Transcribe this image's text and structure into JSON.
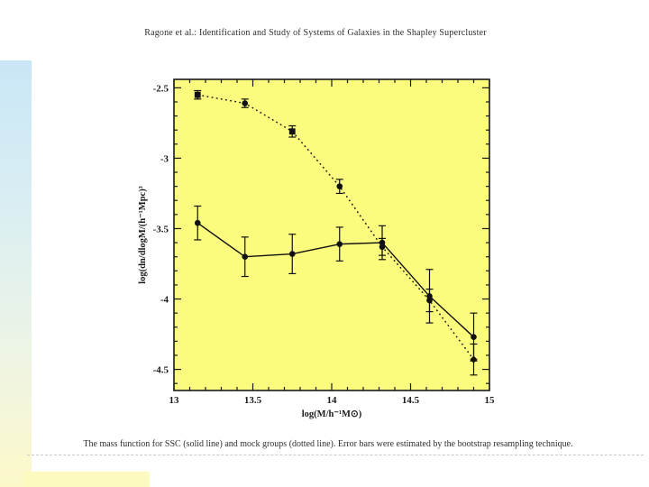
{
  "slide": {
    "title": "Ragone et al.: Identification and Study of Systems of Galaxies in the Shapley Supercluster",
    "caption": "The mass function for SSC (solid line) and mock groups (dotted line). Error bars were estimated by the bootstrap resampling technique."
  },
  "colors": {
    "accent_top": "#c9e6f6",
    "accent_bottom": "#fbf9c8",
    "bottom_strip": "#fcfabf",
    "plot_background": "#fbfc7d",
    "axis_ink": "#1a1a1a",
    "series_ink": "#111111"
  },
  "chart_data": {
    "type": "line",
    "title": "",
    "xlabel": "log(M/h⁻¹M⊙)",
    "ylabel": "log(dn/dlogM/(h⁻¹Mpc)³",
    "xlim": [
      13,
      15
    ],
    "ylim": [
      -4.65,
      -2.44
    ],
    "grid": false,
    "legend_position": "none",
    "plot_bg": "#fbfc7d",
    "x_major_ticks": [
      13,
      13.5,
      14,
      14.5,
      15
    ],
    "x_tick_labels": [
      "13",
      "13.5",
      "14",
      "14.5",
      "15"
    ],
    "y_major_ticks": [
      -2.5,
      -3,
      -3.5,
      -4,
      -4.5
    ],
    "y_tick_labels": [
      "-2.5",
      "-3",
      "-3.5",
      "-4",
      "-4.5"
    ],
    "minor_tick_step": 0.1,
    "series": [
      {
        "name": "SSC",
        "line_style": "solid",
        "marker": "circle",
        "x": [
          13.15,
          13.45,
          13.75,
          14.05,
          14.32,
          14.62,
          14.9
        ],
        "y": [
          -3.46,
          -3.7,
          -3.68,
          -3.61,
          -3.6,
          -3.98,
          -4.27
        ],
        "yerr": [
          0.12,
          0.14,
          0.14,
          0.12,
          0.12,
          0.19,
          0.17
        ]
      },
      {
        "name": "mock groups",
        "line_style": "dotted",
        "markers": [
          "square",
          "circle",
          "square",
          "circle",
          "circle",
          "circle",
          "diamond"
        ],
        "x": [
          13.15,
          13.45,
          13.75,
          14.05,
          14.32,
          14.62,
          14.9
        ],
        "y": [
          -2.55,
          -2.61,
          -2.81,
          -3.2,
          -3.63,
          -4.01,
          -4.43
        ],
        "yerr": [
          0.03,
          0.03,
          0.04,
          0.05,
          0.06,
          0.08,
          0.11
        ]
      }
    ]
  }
}
